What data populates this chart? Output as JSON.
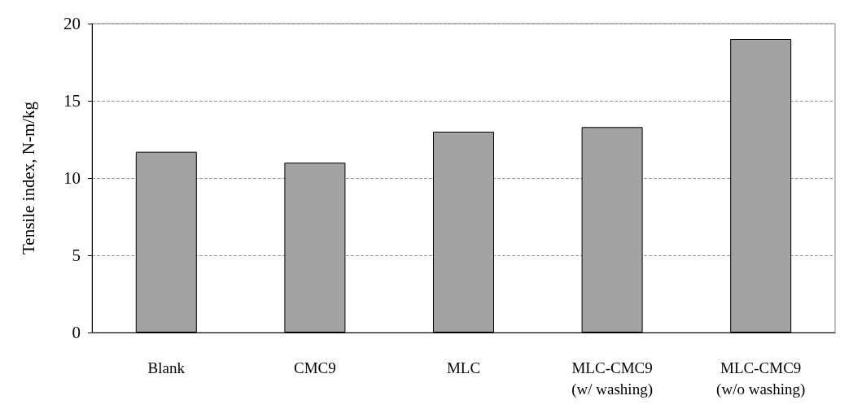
{
  "chart_data": {
    "type": "bar",
    "ylabel": "Tensile index, N-m/kg",
    "categories": [
      "Blank",
      "CMC9",
      "MLC",
      "MLC-CMC9\n(w/ washing)",
      "MLC-CMC9\n(w/o washing)"
    ],
    "values": [
      11.7,
      11.0,
      13.0,
      13.3,
      19.0
    ],
    "color": "#a3a3a3",
    "ylim": [
      0,
      20
    ],
    "yticks": [
      0,
      5,
      10,
      15,
      20
    ],
    "grid": "y",
    "line_style": "dashed"
  }
}
